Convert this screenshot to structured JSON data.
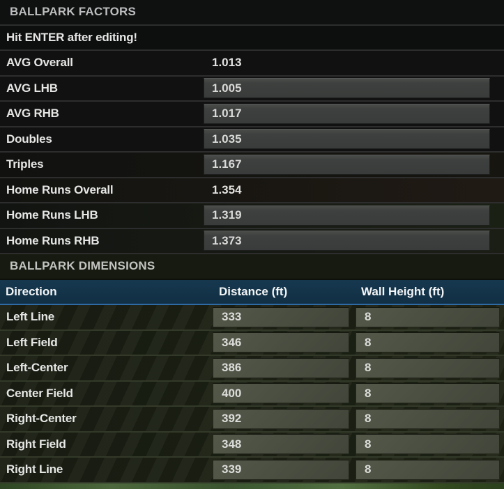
{
  "colors": {
    "table_header_blue": "#16384e",
    "table_header_border_blue": "#2e6ba4",
    "factor_input_fill": "#3e403f",
    "dimension_input_fill": "#4a4e41",
    "field_green": "#3a5530"
  },
  "factors": {
    "title": "BALLPARK FACTORS",
    "note": "Hit ENTER after editing!",
    "rows": [
      {
        "label": "AVG Overall",
        "value": "1.013",
        "editable": false
      },
      {
        "label": "AVG LHB",
        "value": "1.005",
        "editable": true
      },
      {
        "label": "AVG RHB",
        "value": "1.017",
        "editable": true
      },
      {
        "label": "Doubles",
        "value": "1.035",
        "editable": true
      },
      {
        "label": "Triples",
        "value": "1.167",
        "editable": true
      },
      {
        "label": "Home Runs Overall",
        "value": "1.354",
        "editable": false
      },
      {
        "label": "Home Runs LHB",
        "value": "1.319",
        "editable": true
      },
      {
        "label": "Home Runs RHB",
        "value": "1.373",
        "editable": true
      }
    ]
  },
  "dimensions": {
    "title": "BALLPARK DIMENSIONS",
    "columns": [
      "Direction",
      "Distance (ft)",
      "Wall Height (ft)"
    ],
    "rows": [
      {
        "direction": "Left Line",
        "distance": "333",
        "wall_height": "8"
      },
      {
        "direction": "Left Field",
        "distance": "346",
        "wall_height": "8"
      },
      {
        "direction": "Left-Center",
        "distance": "386",
        "wall_height": "8"
      },
      {
        "direction": "Center Field",
        "distance": "400",
        "wall_height": "8"
      },
      {
        "direction": "Right-Center",
        "distance": "392",
        "wall_height": "8"
      },
      {
        "direction": "Right Field",
        "distance": "348",
        "wall_height": "8"
      },
      {
        "direction": "Right Line",
        "distance": "339",
        "wall_height": "8"
      }
    ]
  }
}
